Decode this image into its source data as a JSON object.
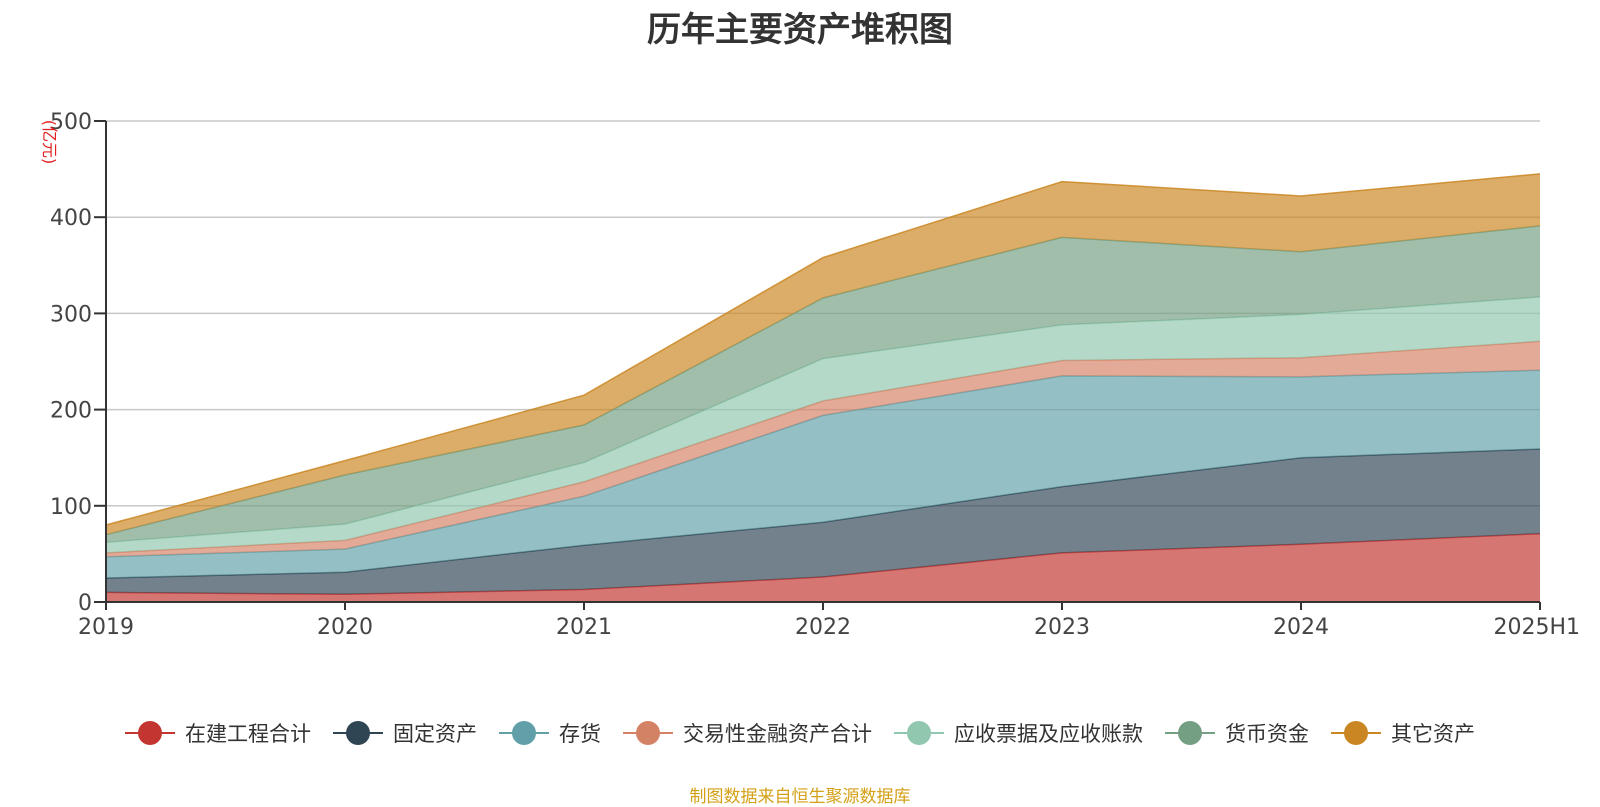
{
  "chart_data": {
    "type": "area",
    "title": "历年主要资产堆积图",
    "ylabel": "(亿元)",
    "x": [
      "2019",
      "2020",
      "2021",
      "2022",
      "2023",
      "2024",
      "2025H1"
    ],
    "ylim": [
      0,
      500
    ],
    "yticks": [
      0,
      100,
      200,
      300,
      400,
      500
    ],
    "stacked": true,
    "grid": true,
    "legend_position": "bottom",
    "series": [
      {
        "name": "在建工程合计",
        "color": "#c23531",
        "values": [
          10,
          8,
          13,
          26,
          51,
          60,
          71
        ]
      },
      {
        "name": "固定资产",
        "color": "#2f4554",
        "values": [
          15,
          23,
          46,
          57,
          69,
          90,
          88
        ]
      },
      {
        "name": "存货",
        "color": "#61a0a8",
        "values": [
          22,
          24,
          51,
          111,
          115,
          84,
          82
        ]
      },
      {
        "name": "交易性金融资产合计",
        "color": "#d48265",
        "values": [
          4,
          9,
          15,
          15,
          16,
          20,
          30
        ]
      },
      {
        "name": "应收票据及应收账款",
        "color": "#91c7ae",
        "values": [
          11,
          17,
          20,
          44,
          37,
          45,
          46
        ]
      },
      {
        "name": "货币资金",
        "color": "#749f83",
        "values": [
          8,
          51,
          39,
          63,
          91,
          65,
          74
        ]
      },
      {
        "name": "其它资产",
        "color": "#ca8622",
        "values": [
          10,
          15,
          31,
          42,
          58,
          58,
          54
        ]
      }
    ]
  },
  "footer": {
    "source_note": "制图数据来自恒生聚源数据库"
  }
}
